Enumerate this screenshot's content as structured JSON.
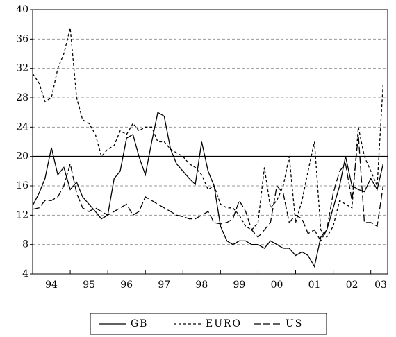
{
  "chart_data": {
    "type": "line",
    "x": [
      1994,
      1994.17,
      1994.33,
      1994.5,
      1994.67,
      1994.83,
      1995,
      1995.17,
      1995.33,
      1995.5,
      1995.67,
      1995.83,
      1996,
      1996.17,
      1996.33,
      1996.5,
      1996.67,
      1996.83,
      1997,
      1997.17,
      1997.33,
      1997.5,
      1997.67,
      1997.83,
      1998,
      1998.17,
      1998.33,
      1998.5,
      1998.67,
      1998.83,
      1999,
      1999.17,
      1999.33,
      1999.5,
      1999.67,
      1999.83,
      2000,
      2000.17,
      2000.33,
      2000.5,
      2000.67,
      2000.83,
      2001,
      2001.17,
      2001.33,
      2001.5,
      2001.67,
      2001.83,
      2002,
      2002.17,
      2002.33,
      2002.5,
      2002.67,
      2002.83,
      2003,
      2003.17,
      2003.33
    ],
    "series": [
      {
        "name": "GB",
        "color": "#000000",
        "dash": "none",
        "values": [
          13.3,
          15,
          17,
          21.2,
          17.5,
          18.5,
          15.5,
          16.5,
          14.5,
          13.5,
          12.5,
          11.5,
          12,
          17,
          18,
          22.5,
          23,
          20,
          17.5,
          22,
          26,
          25.5,
          21,
          19,
          18,
          17,
          16.2,
          22,
          18,
          16,
          10.5,
          8.5,
          8,
          8.5,
          8.5,
          8,
          8,
          7.5,
          8.5,
          8,
          7.5,
          7.5,
          6.5,
          7,
          6.5,
          5,
          9,
          10,
          13,
          16,
          20,
          16,
          15.5,
          15.2,
          17,
          15.5,
          19
        ]
      },
      {
        "name": "EURO",
        "color": "#000000",
        "dash": "4,3",
        "values": [
          31.3,
          30,
          27.5,
          28,
          32,
          34,
          37.5,
          28,
          25,
          24.5,
          23,
          20,
          21,
          21.5,
          23.5,
          23,
          24.5,
          23.5,
          24,
          24,
          22,
          22,
          21,
          20.5,
          20,
          19,
          18.5,
          17.5,
          15.5,
          16,
          13.5,
          13,
          13,
          12,
          10.5,
          10,
          11,
          18.5,
          13,
          14,
          16,
          20,
          11,
          14,
          18,
          22,
          10,
          9,
          10.5,
          14,
          13.5,
          13,
          24,
          20,
          18,
          16,
          30
        ]
      },
      {
        "name": "US",
        "color": "#000000",
        "dash": "10,4",
        "values": [
          12.8,
          13,
          14,
          14,
          14.5,
          16,
          19,
          15,
          13,
          12.5,
          13,
          12.5,
          12,
          12.5,
          13,
          13.5,
          12,
          12.5,
          14.5,
          14,
          13.5,
          13,
          12.5,
          12,
          11.8,
          11.5,
          11.5,
          12,
          12.5,
          11,
          10.8,
          11,
          11.5,
          14,
          12.5,
          10,
          9,
          10,
          11,
          16,
          15,
          11,
          12,
          11.5,
          9.5,
          10,
          8.5,
          10,
          15,
          18,
          19,
          14,
          23,
          11,
          11,
          10.5,
          16
        ]
      }
    ],
    "xlim": [
      1994,
      2003.45
    ],
    "xticks": [
      {
        "value": 1994,
        "label": "94"
      },
      {
        "value": 1995,
        "label": "95"
      },
      {
        "value": 1996,
        "label": "96"
      },
      {
        "value": 1997,
        "label": "97"
      },
      {
        "value": 1998,
        "label": "98"
      },
      {
        "value": 1999,
        "label": "99"
      },
      {
        "value": 2000,
        "label": "00"
      },
      {
        "value": 2001,
        "label": "01"
      },
      {
        "value": 2002,
        "label": "02"
      },
      {
        "value": 2003,
        "label": "03"
      }
    ],
    "ylim": [
      4,
      40
    ],
    "yticks": [
      4,
      8,
      12,
      16,
      20,
      24,
      28,
      32,
      36,
      40
    ],
    "reference_line": 20,
    "grid": true,
    "legend": "bottom"
  }
}
